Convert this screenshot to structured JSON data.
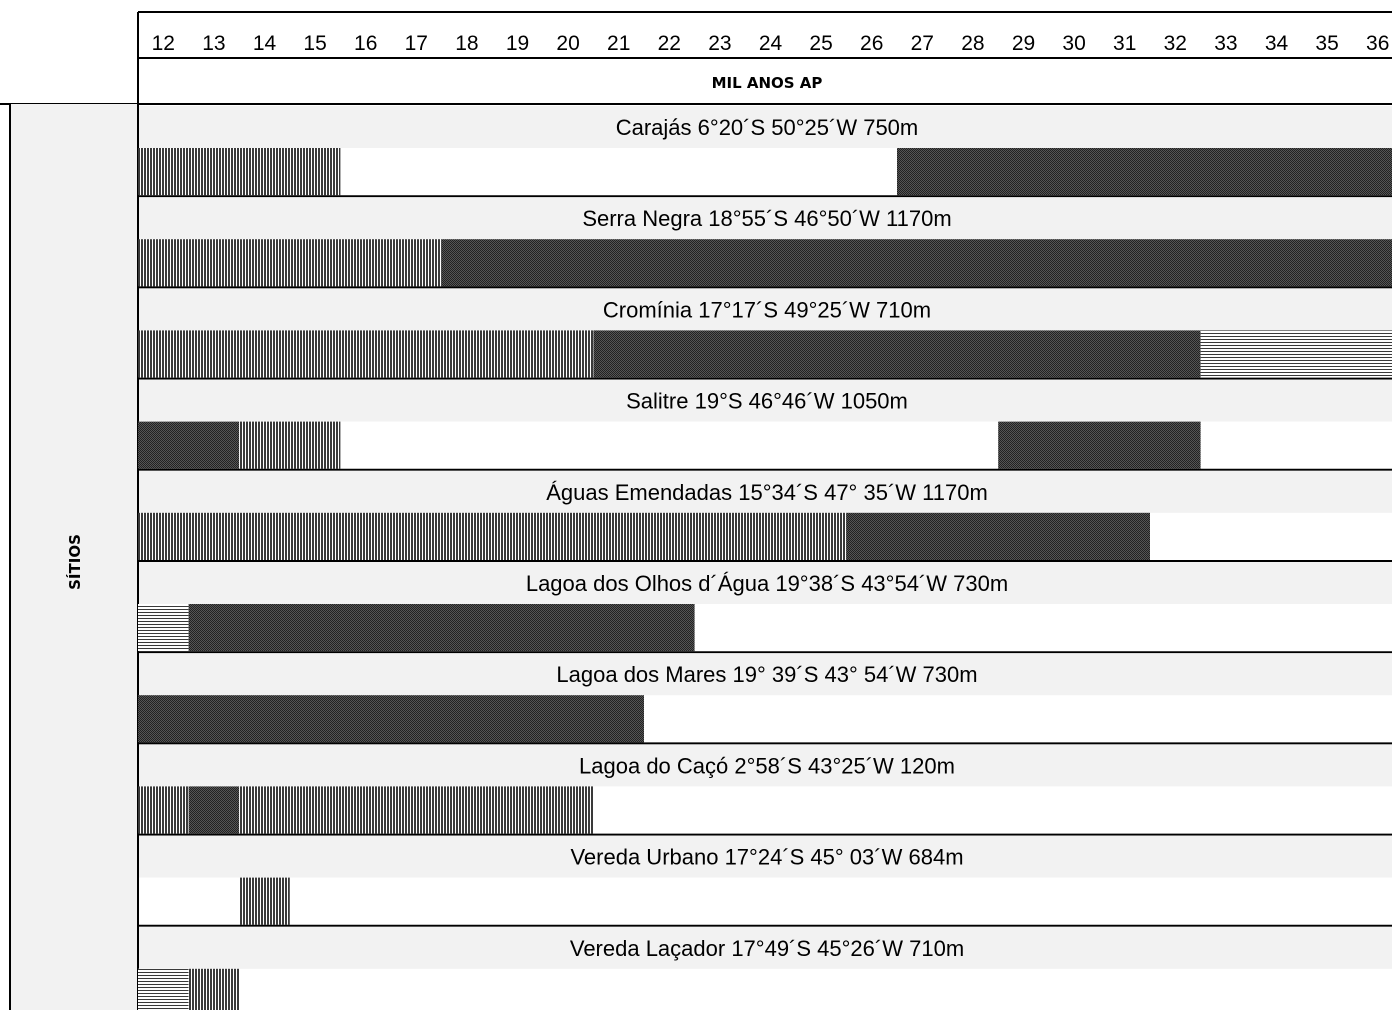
{
  "chart_data": {
    "type": "timeline",
    "xlabel": "MIL ANOS AP",
    "ylabel": "SÍTIOS",
    "xlim": [
      12,
      37
    ],
    "ticks": [
      "12",
      "13",
      "14",
      "15",
      "16",
      "17",
      "18",
      "19",
      "20",
      "21",
      "22",
      "23",
      "24",
      "25",
      "26",
      "27",
      "28",
      "29",
      "30",
      "31",
      "32",
      "33",
      "34",
      "35",
      "36"
    ],
    "pattern_fills": {
      "vertical": "#3a3a3a",
      "stipple": "#3c3c3c",
      "horizontal": "#3a3a3a"
    },
    "sites": [
      {
        "label": "Carajás 6°20´S 50°25´W 750m",
        "segments": [
          {
            "start": 12,
            "end": 16,
            "pattern": "vertical"
          },
          {
            "start": 27,
            "end": 37,
            "pattern": "stipple"
          }
        ]
      },
      {
        "label": "Serra Negra 18°55´S 46°50´W 1170m",
        "segments": [
          {
            "start": 12,
            "end": 18,
            "pattern": "vertical"
          },
          {
            "start": 18,
            "end": 37,
            "pattern": "stipple"
          }
        ]
      },
      {
        "label": "Cromínia 17°17´S 49°25´W 710m",
        "segments": [
          {
            "start": 12,
            "end": 21,
            "pattern": "vertical"
          },
          {
            "start": 21,
            "end": 33,
            "pattern": "stipple"
          },
          {
            "start": 33,
            "end": 37,
            "pattern": "horizontal"
          }
        ]
      },
      {
        "label": "Salitre 19°S 46°46´W 1050m",
        "segments": [
          {
            "start": 12,
            "end": 14,
            "pattern": "stipple"
          },
          {
            "start": 14,
            "end": 16,
            "pattern": "vertical"
          },
          {
            "start": 29,
            "end": 33,
            "pattern": "stipple"
          }
        ]
      },
      {
        "label": "Águas Emendadas 15°34´S 47° 35´W 1170m",
        "segments": [
          {
            "start": 12,
            "end": 26,
            "pattern": "vertical"
          },
          {
            "start": 26,
            "end": 32,
            "pattern": "stipple"
          }
        ]
      },
      {
        "label": "Lagoa dos Olhos d´Água 19°38´S 43°54´W 730m",
        "segments": [
          {
            "start": 12,
            "end": 13,
            "pattern": "horizontal"
          },
          {
            "start": 13,
            "end": 23,
            "pattern": "stipple"
          }
        ]
      },
      {
        "label": "Lagoa dos Mares 19° 39´S 43° 54´W 730m",
        "segments": [
          {
            "start": 12,
            "end": 22,
            "pattern": "stipple"
          }
        ]
      },
      {
        "label": "Lagoa do Caçó 2°58´S 43°25´W 120m",
        "segments": [
          {
            "start": 12,
            "end": 13,
            "pattern": "vertical"
          },
          {
            "start": 13,
            "end": 14,
            "pattern": "stipple"
          },
          {
            "start": 14,
            "end": 21,
            "pattern": "vertical"
          }
        ]
      },
      {
        "label": "Vereda Urbano 17°24´S 45° 03´W 684m",
        "segments": [
          {
            "start": 14,
            "end": 15,
            "pattern": "vertical"
          }
        ]
      },
      {
        "label": "Vereda Laçador 17°49´S 45°26´W 710m",
        "segments": [
          {
            "start": 12,
            "end": 13,
            "pattern": "horizontal"
          },
          {
            "start": 13,
            "end": 14,
            "pattern": "vertical"
          }
        ]
      }
    ]
  }
}
